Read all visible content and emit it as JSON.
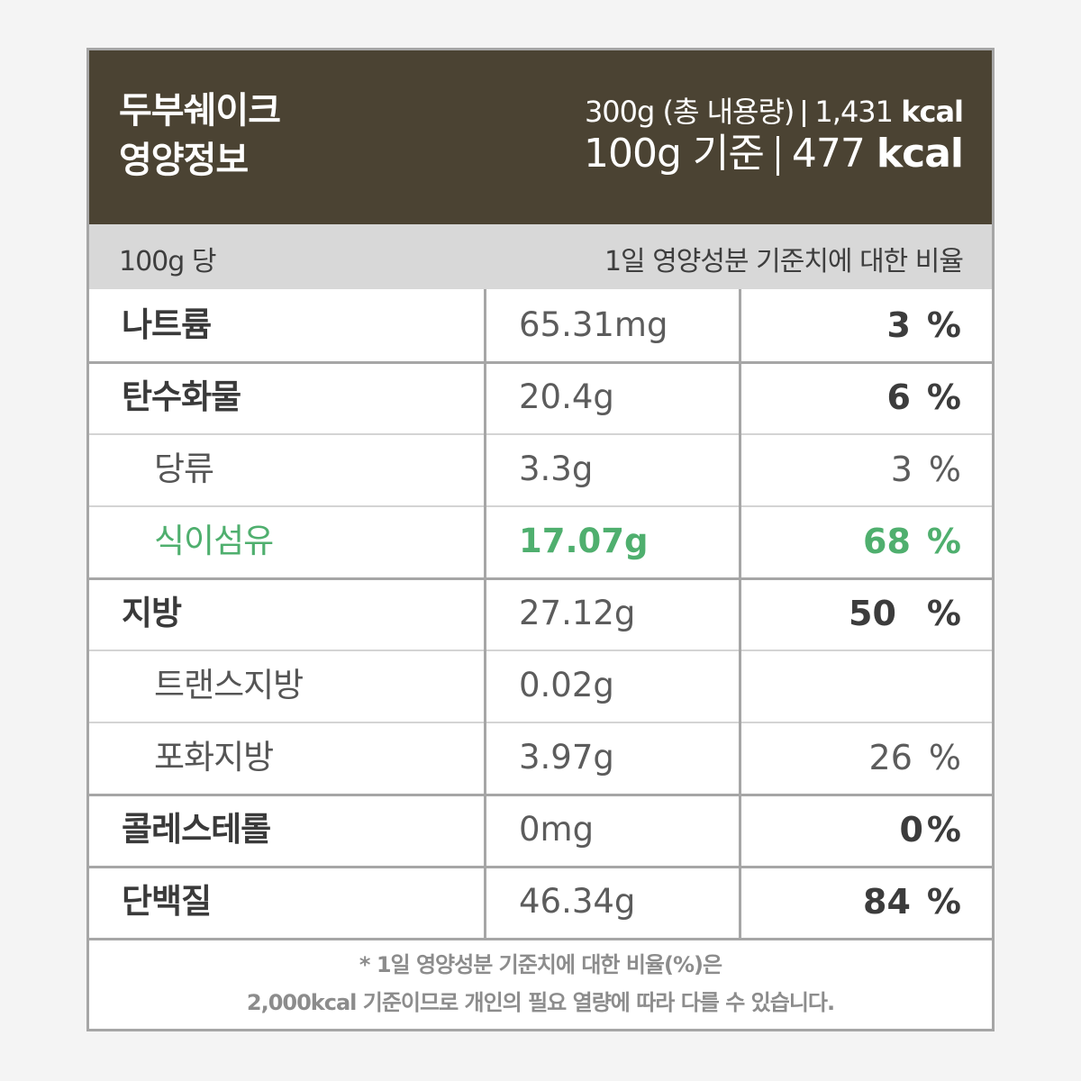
{
  "header": {
    "title_line1": "두부쉐이크",
    "title_line2": "영양정보",
    "total_weight": "300g (총 내용량)",
    "total_kcal_value": "1,431",
    "per_weight": "100g 기준",
    "per_kcal_value": "477",
    "kcal_unit": "kcal"
  },
  "subheader": {
    "per_label": "100g 당",
    "ratio_label": "1일 영양성분 기준치에 대한 비율"
  },
  "rows": [
    {
      "name": "나트륨",
      "amount": "65.31mg",
      "percent": "3",
      "unit": "%"
    },
    {
      "name": "탄수화물",
      "amount": "20.4g",
      "percent": "6",
      "unit": "%"
    },
    {
      "name": "당류",
      "amount": "3.3g",
      "percent": "3",
      "unit": "%"
    },
    {
      "name": "식이섬유",
      "amount": "17.07g",
      "percent": "68",
      "unit": "%"
    },
    {
      "name": "지방",
      "amount": "27.12g",
      "percent": "50",
      "unit": "%"
    },
    {
      "name": "트랜스지방",
      "amount": "0.02g",
      "percent": "",
      "unit": ""
    },
    {
      "name": "포화지방",
      "amount": "3.97g",
      "percent": "26",
      "unit": "%"
    },
    {
      "name": "콜레스테롤",
      "amount": "0mg",
      "percent": "0",
      "unit": "%"
    },
    {
      "name": "단백질",
      "amount": "46.34g",
      "percent": "84",
      "unit": "%"
    }
  ],
  "footer": {
    "line1": "* 1일 영양성분 기준치에 대한 비율(%)은",
    "line2": "2,000kcal 기준이므로 개인의 필요 열량에 따라 다를 수 있습니다."
  },
  "colors": {
    "header_bg": "#4b4333",
    "subheader_bg": "#d8d8d8",
    "highlight_green": "#4faf6e",
    "border_gray": "#a6a6a6"
  }
}
